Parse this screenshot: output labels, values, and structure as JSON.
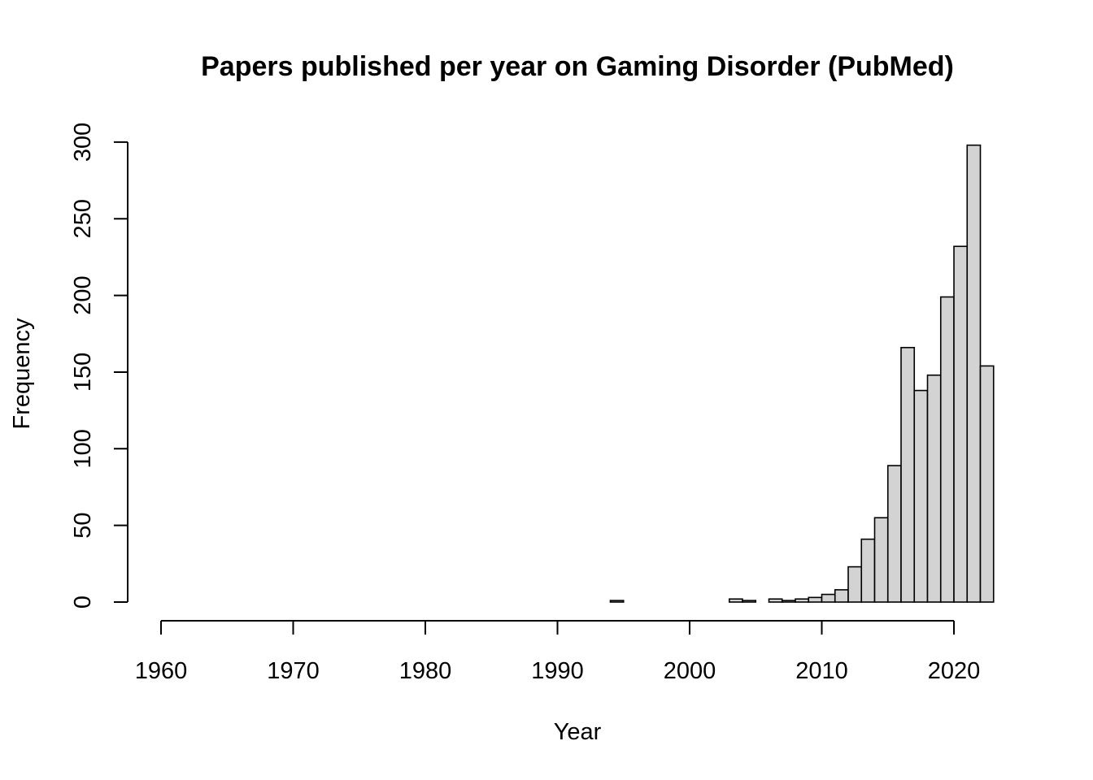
{
  "chart_data": {
    "type": "bar",
    "title": "Papers published per year on Gaming Disorder (PubMed)",
    "xlabel": "Year",
    "ylabel": "Frequency",
    "xlim": [
      1960,
      2023
    ],
    "ylim": [
      0,
      300
    ],
    "xticks": [
      "1960",
      "1970",
      "1980",
      "1990",
      "2000",
      "2010",
      "2020"
    ],
    "yticks": [
      "0",
      "50",
      "100",
      "150",
      "200",
      "250",
      "300"
    ],
    "bin_width": 1,
    "bar_color": "#d3d3d3",
    "grid": false,
    "bins_start": [
      1994,
      1995,
      1996,
      1997,
      1998,
      1999,
      2000,
      2001,
      2002,
      2003,
      2004,
      2005,
      2006,
      2007,
      2008,
      2009,
      2010,
      2011,
      2012,
      2013,
      2014,
      2015,
      2016,
      2017,
      2018,
      2019,
      2020,
      2021,
      2022
    ],
    "values": [
      1,
      0,
      0,
      0,
      0,
      0,
      0,
      0,
      0,
      2,
      1,
      0,
      2,
      1,
      2,
      3,
      5,
      8,
      23,
      41,
      55,
      89,
      166,
      138,
      148,
      199,
      232,
      298,
      154
    ]
  }
}
